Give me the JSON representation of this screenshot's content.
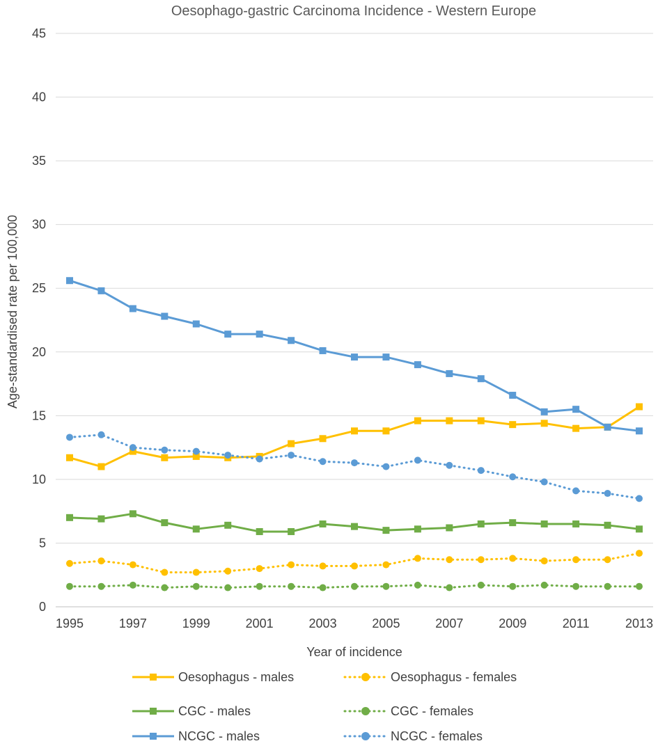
{
  "chart_data": {
    "type": "line",
    "title": "Oesophago-gastric Carcinoma Incidence - Western Europe",
    "xlabel": "Year of incidence",
    "ylabel": "Age-standardised rate per 100,000",
    "ylim": [
      0,
      45
    ],
    "yticks": [
      "0",
      "5",
      "10",
      "15",
      "20",
      "25",
      "30",
      "35",
      "40",
      "45"
    ],
    "x": [
      1995,
      1996,
      1997,
      1998,
      1999,
      2000,
      2001,
      2002,
      2003,
      2004,
      2005,
      2006,
      2007,
      2008,
      2009,
      2010,
      2011,
      2012,
      2013
    ],
    "xtick_labels": [
      "1995",
      "1997",
      "1999",
      "2001",
      "2003",
      "2005",
      "2007",
      "2009",
      "2011",
      "2013"
    ],
    "grid": true,
    "legend_position": "bottom",
    "series": [
      {
        "name": "Oesophagus - males",
        "color": "#FFC000",
        "style": "solid",
        "marker": "square",
        "values": [
          11.7,
          11.0,
          12.2,
          11.7,
          11.8,
          11.7,
          11.8,
          12.8,
          13.2,
          13.8,
          13.8,
          14.6,
          14.6,
          14.6,
          14.3,
          14.4,
          14.0,
          14.1,
          15.7
        ]
      },
      {
        "name": "Oesophagus - females",
        "color": "#FFC000",
        "style": "dotted",
        "marker": "circle",
        "values": [
          3.4,
          3.6,
          3.3,
          2.7,
          2.7,
          2.8,
          3.0,
          3.3,
          3.2,
          3.2,
          3.3,
          3.8,
          3.7,
          3.7,
          3.8,
          3.6,
          3.7,
          3.7,
          4.2
        ]
      },
      {
        "name": "CGC - males",
        "color": "#70AD47",
        "style": "solid",
        "marker": "square",
        "values": [
          7.0,
          6.9,
          7.3,
          6.6,
          6.1,
          6.4,
          5.9,
          5.9,
          6.5,
          6.3,
          6.0,
          6.1,
          6.2,
          6.5,
          6.6,
          6.5,
          6.5,
          6.4,
          6.1
        ]
      },
      {
        "name": "CGC - females",
        "color": "#70AD47",
        "style": "dotted",
        "marker": "circle",
        "values": [
          1.6,
          1.6,
          1.7,
          1.5,
          1.6,
          1.5,
          1.6,
          1.6,
          1.5,
          1.6,
          1.6,
          1.7,
          1.5,
          1.7,
          1.6,
          1.7,
          1.6,
          1.6,
          1.6
        ]
      },
      {
        "name": "NCGC - males",
        "color": "#5B9BD5",
        "style": "solid",
        "marker": "square",
        "values": [
          25.6,
          24.8,
          23.4,
          22.8,
          22.2,
          21.4,
          21.4,
          20.9,
          20.1,
          19.6,
          19.6,
          19.0,
          18.3,
          17.9,
          16.6,
          15.3,
          15.5,
          14.1,
          13.8
        ]
      },
      {
        "name": "NCGC - females",
        "color": "#5B9BD5",
        "style": "dotted",
        "marker": "circle",
        "values": [
          13.3,
          13.5,
          12.5,
          12.3,
          12.2,
          11.9,
          11.6,
          11.9,
          11.4,
          11.3,
          11.0,
          11.5,
          11.1,
          10.7,
          10.2,
          9.8,
          9.1,
          8.9,
          8.5
        ]
      }
    ]
  }
}
